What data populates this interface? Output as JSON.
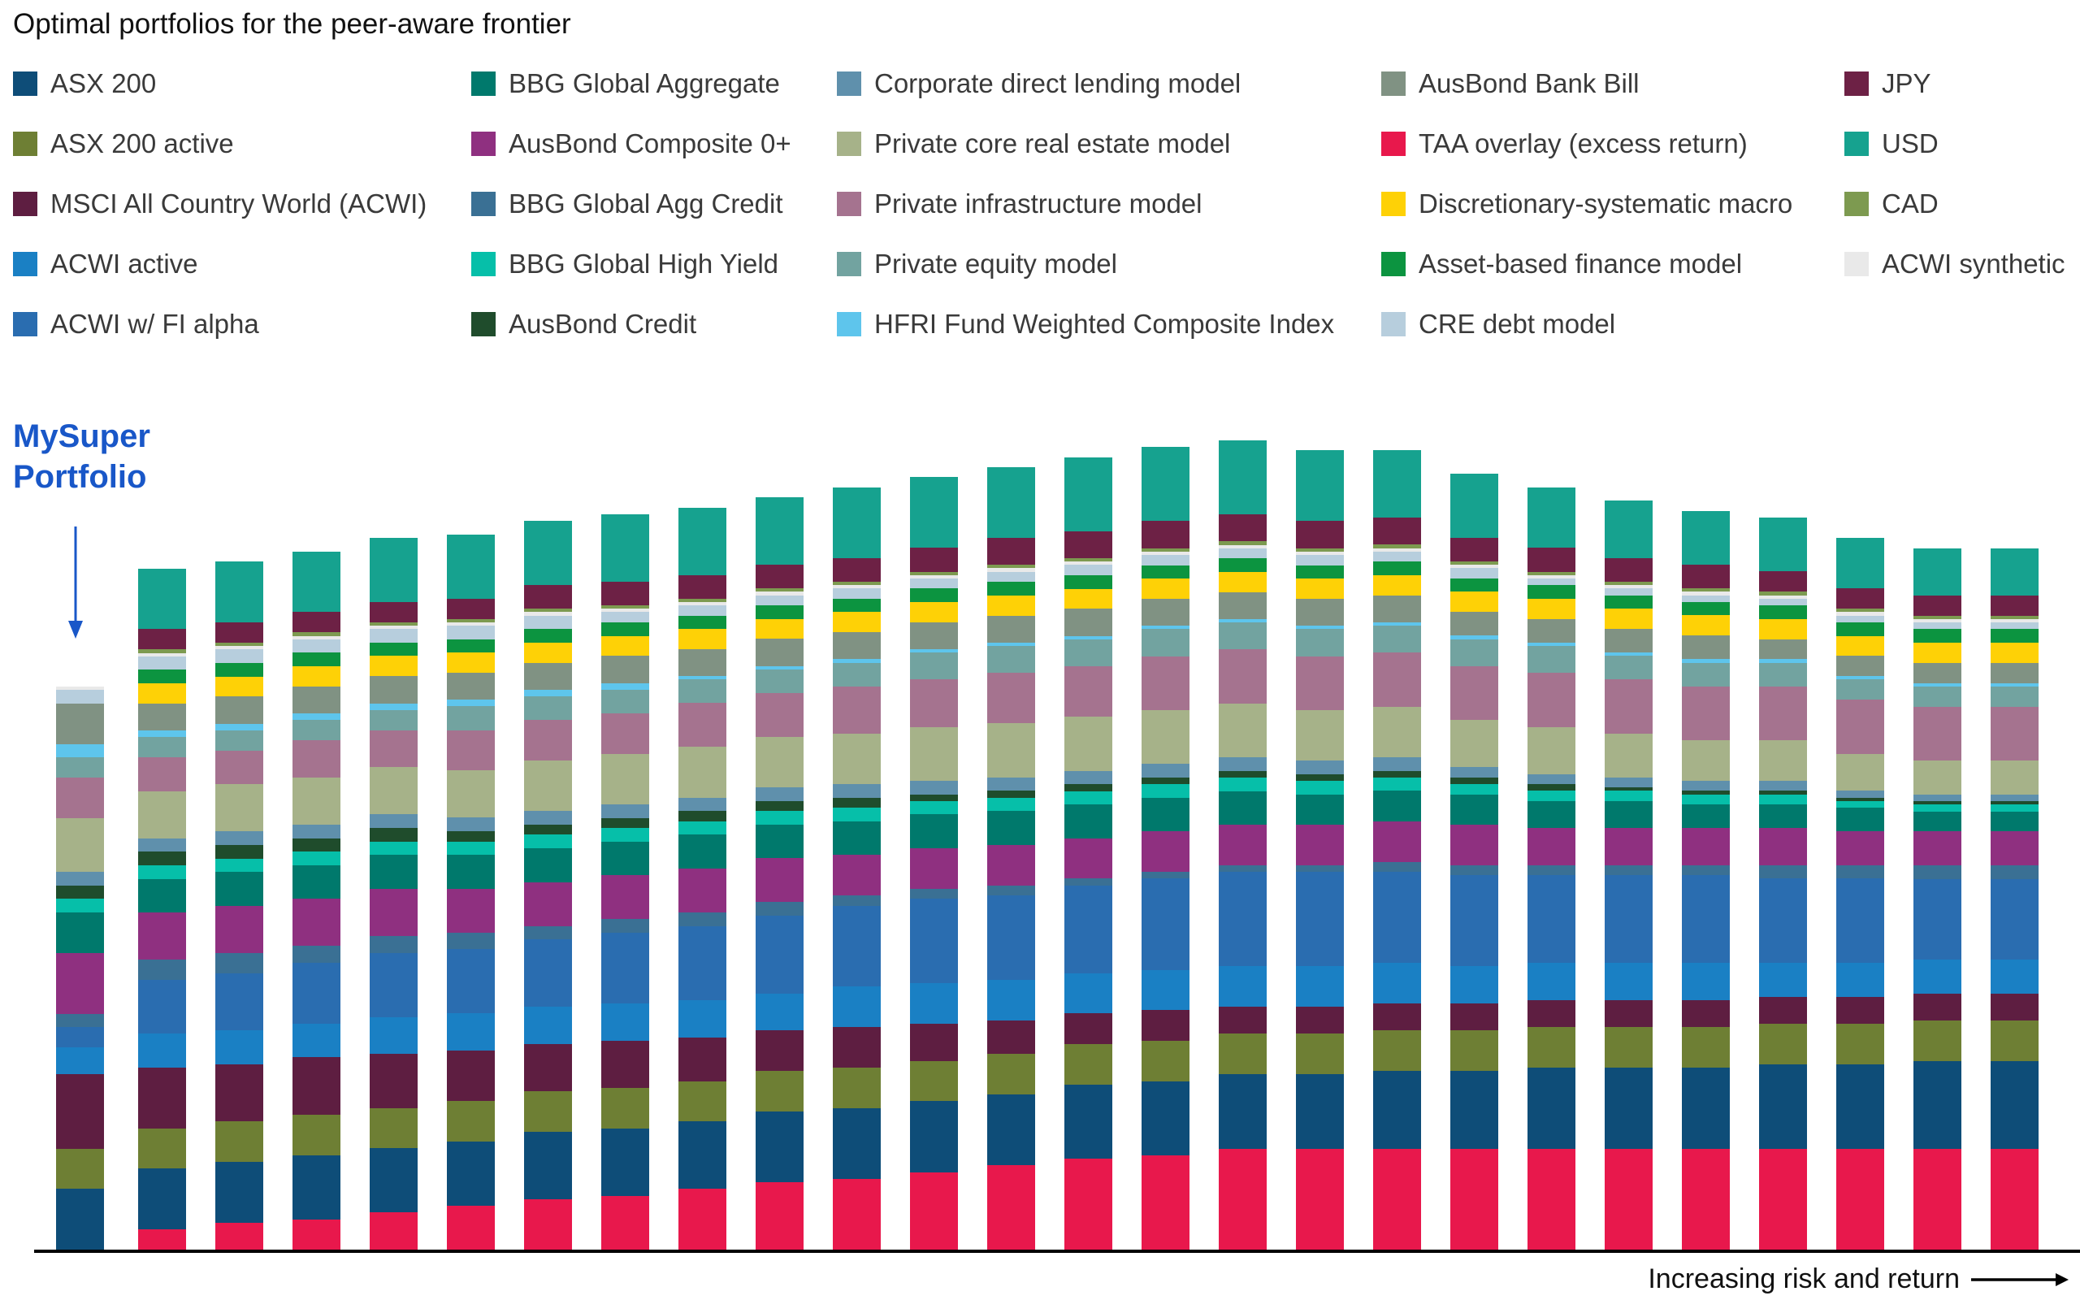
{
  "title": "Optimal portfolios for the peer-aware frontier",
  "annotation": {
    "line1": "MySuper",
    "line2": "Portfolio",
    "color": "#1957c8"
  },
  "xaxis": {
    "label": "Increasing risk and return"
  },
  "legend": {
    "columns": [
      [
        "ASX 200",
        "ASX 200 active",
        "MSCI All Country World (ACWI)",
        "ACWI active",
        "ACWI w/ FI alpha"
      ],
      [
        "BBG Global Aggregate",
        "AusBond Composite 0+",
        "BBG Global Agg Credit",
        "BBG Global High Yield",
        "AusBond Credit"
      ],
      [
        "Corporate direct lending model",
        "Private core real estate model",
        "Private infrastructure model",
        "Private equity model",
        "HFRI Fund Weighted Composite Index"
      ],
      [
        "AusBond Bank Bill",
        "TAA overlay (excess return)",
        "Discretionary-systematic macro",
        "Asset-based finance model",
        "CRE debt model"
      ],
      [
        "JPY",
        "USD",
        "CAD",
        "ACWI synthetic"
      ]
    ]
  },
  "chart_data": {
    "type": "bar",
    "stacked": true,
    "bar_count": 26,
    "first_bar_label": "MySuper Portfolio",
    "x_meaning": "Portfolios ordered by increasing risk and return along the peer-aware efficient frontier",
    "y_meaning": "Portfolio weight (%), stacked allocation incl. overlays",
    "legend_position": "top",
    "grid": false,
    "series": [
      {
        "name": "TAA overlay (excess return)",
        "color": "#e8184c",
        "pattern": "dots",
        "values": [
          0,
          3,
          4,
          4.5,
          5.5,
          6.5,
          7.5,
          8,
          9,
          10,
          10.5,
          11.5,
          12.5,
          13.5,
          14,
          15,
          15,
          15,
          15,
          15,
          15,
          15,
          15,
          15,
          15,
          15
        ]
      },
      {
        "name": "ASX 200",
        "color": "#0e4d78",
        "pattern": "none",
        "values": [
          9,
          9,
          9,
          9.5,
          9.5,
          9.5,
          10,
          10,
          10,
          10.5,
          10.5,
          10.5,
          10.5,
          11,
          11,
          11,
          11,
          11.5,
          11.5,
          12,
          12,
          12,
          12.5,
          12.5,
          13,
          13
        ]
      },
      {
        "name": "ASX 200 active",
        "color": "#6e7f34",
        "pattern": "none",
        "values": [
          6,
          6,
          6,
          6,
          6,
          6,
          6,
          6,
          6,
          6,
          6,
          6,
          6,
          6,
          6,
          6,
          6,
          6,
          6,
          6,
          6,
          6,
          6,
          6,
          6,
          6
        ]
      },
      {
        "name": "MSCI All Country World (ACWI)",
        "color": "#5e1e41",
        "pattern": "none",
        "values": [
          11,
          9,
          8.5,
          8.5,
          8,
          7.5,
          7,
          7,
          6.5,
          6,
          6,
          5.5,
          5,
          4.5,
          4.5,
          4,
          4,
          4,
          4,
          4,
          4,
          4,
          4,
          4,
          4,
          4
        ]
      },
      {
        "name": "ACWI active",
        "color": "#1a80c4",
        "pattern": "none",
        "values": [
          4,
          5,
          5,
          5,
          5.5,
          5.5,
          5.5,
          5.5,
          5.5,
          5.5,
          6,
          6,
          6,
          6,
          6,
          6,
          6,
          6,
          5.5,
          5.5,
          5.5,
          5.5,
          5,
          5,
          5,
          5
        ]
      },
      {
        "name": "ACWI w/ FI alpha",
        "color": "#2a6db0",
        "pattern": "zigzag",
        "values": [
          3,
          8,
          8.5,
          9,
          9.5,
          9.5,
          10,
          10.5,
          11,
          11.5,
          12,
          12.5,
          12.5,
          13,
          13.5,
          14,
          14,
          13.5,
          13.5,
          13,
          13,
          13,
          12.5,
          12.5,
          12,
          12
        ]
      },
      {
        "name": "BBG Global Agg Credit",
        "color": "#3a7094",
        "pattern": "none",
        "values": [
          2,
          3,
          3,
          2.5,
          2.5,
          2.5,
          2,
          2,
          2,
          2,
          1.5,
          1.5,
          1.5,
          1,
          1,
          1,
          1,
          1.5,
          1.5,
          1.5,
          1.5,
          1.5,
          2,
          2,
          2,
          2
        ]
      },
      {
        "name": "AusBond Composite 0+",
        "color": "#8f3080",
        "pattern": "none",
        "values": [
          9,
          7,
          7,
          7,
          7,
          6.5,
          6.5,
          6.5,
          6.5,
          6.5,
          6,
          6,
          6,
          6,
          6,
          6,
          6,
          6,
          6,
          5.5,
          5.5,
          5.5,
          5.5,
          5,
          5,
          5
        ]
      },
      {
        "name": "BBG Global Aggregate",
        "color": "#00796c",
        "pattern": "none",
        "values": [
          6,
          5,
          5,
          5,
          5,
          5,
          5,
          5,
          5,
          5,
          5,
          5,
          5,
          5,
          5,
          5,
          4.5,
          4.5,
          4.5,
          4,
          4,
          3.5,
          3.5,
          3.5,
          3,
          3
        ]
      },
      {
        "name": "BBG Global High Yield",
        "color": "#06bfa9",
        "pattern": "none",
        "values": [
          2,
          2,
          2,
          2,
          2,
          2,
          2,
          2,
          2,
          2,
          2,
          2,
          2,
          2,
          2,
          2,
          2,
          2,
          1.5,
          1.5,
          1.5,
          1.5,
          1.5,
          1,
          1,
          1
        ]
      },
      {
        "name": "AusBond Credit",
        "color": "#1f4c2c",
        "pattern": "none",
        "values": [
          2,
          2,
          2,
          2,
          2,
          1.5,
          1.5,
          1.5,
          1.5,
          1.5,
          1.5,
          1,
          1,
          1,
          1,
          1,
          1,
          1,
          1,
          1,
          0.5,
          0.5,
          0.5,
          0.5,
          0.5,
          0.5
        ]
      },
      {
        "name": "Corporate direct lending model",
        "color": "#5f90ac",
        "pattern": "none",
        "values": [
          2,
          2,
          2,
          2,
          2,
          2,
          2,
          2,
          2,
          2,
          2,
          2,
          2,
          2,
          2,
          2,
          2,
          2,
          1.5,
          1.5,
          1.5,
          1.5,
          1.5,
          1,
          1,
          1
        ]
      },
      {
        "name": "Private core real estate model",
        "color": "#a6b289",
        "pattern": "none",
        "values": [
          8,
          7,
          7,
          7,
          7,
          7,
          7.5,
          7.5,
          7.5,
          7.5,
          7.5,
          8,
          8,
          8,
          8,
          8,
          7.5,
          7.5,
          7,
          7,
          6.5,
          6,
          6,
          5.5,
          5,
          5
        ]
      },
      {
        "name": "Private infrastructure model",
        "color": "#a5738f",
        "pattern": "none",
        "values": [
          6,
          5,
          5,
          5.5,
          5.5,
          6,
          6,
          6,
          6.5,
          6.5,
          7,
          7,
          7.5,
          7.5,
          8,
          8,
          8,
          8,
          8,
          8,
          8,
          8,
          8,
          8,
          8,
          8
        ]
      },
      {
        "name": "Private equity model",
        "color": "#72a3a0",
        "pattern": "none",
        "values": [
          3,
          3,
          3,
          3,
          3,
          3.5,
          3.5,
          3.5,
          3.5,
          3.5,
          3.5,
          4,
          4,
          4,
          4,
          4,
          4,
          4,
          4,
          4,
          3.5,
          3.5,
          3.5,
          3,
          3,
          3
        ]
      },
      {
        "name": "HFRI Fund Weighted Composite Index",
        "color": "#5ec5ec",
        "pattern": "none",
        "values": [
          2,
          1,
          1,
          1,
          1,
          1,
          1,
          1,
          0.5,
          0.5,
          0.5,
          0.5,
          0.5,
          0.5,
          0.5,
          0.5,
          0.5,
          0.5,
          0.5,
          0.5,
          0.5,
          0.5,
          0.5,
          0.5,
          0.5,
          0.5
        ]
      },
      {
        "name": "AusBond Bank Bill",
        "color": "#809283",
        "pattern": "none",
        "values": [
          6,
          4,
          4,
          4,
          4,
          4,
          4,
          4,
          4,
          4,
          4,
          4,
          4,
          4,
          4,
          4,
          4,
          4,
          3.5,
          3.5,
          3.5,
          3.5,
          3,
          3,
          3,
          3
        ]
      },
      {
        "name": "Discretionary-systematic macro",
        "color": "#fed106",
        "pattern": "none",
        "values": [
          0,
          3,
          3,
          3,
          3,
          3,
          3,
          3,
          3,
          3,
          3,
          3,
          3,
          3,
          3,
          3,
          3,
          3,
          3,
          3,
          3,
          3,
          3,
          3,
          3,
          3
        ]
      },
      {
        "name": "Asset-based finance model",
        "color": "#0c9440",
        "pattern": "none",
        "values": [
          0,
          2,
          2,
          2,
          2,
          2,
          2,
          2,
          2,
          2,
          2,
          2,
          2,
          2,
          2,
          2,
          2,
          2,
          2,
          2,
          2,
          2,
          2,
          2,
          2,
          2
        ]
      },
      {
        "name": "CRE debt model",
        "color": "#b7cedd",
        "pattern": "none",
        "values": [
          2,
          2,
          2,
          2,
          2,
          2,
          2,
          1.5,
          1.5,
          1.5,
          1.5,
          1.5,
          1.5,
          1.5,
          1.5,
          1.5,
          1.5,
          1.5,
          1.5,
          1,
          1,
          1,
          1,
          1,
          1,
          1
        ]
      },
      {
        "name": "ACWI synthetic",
        "color": "#e9e9e9",
        "pattern": "fine-dots",
        "values": [
          0.5,
          0.5,
          0.5,
          0.5,
          0.5,
          0.5,
          0.5,
          0.5,
          0.5,
          0.5,
          0.5,
          0.5,
          0.5,
          0.5,
          0.5,
          0.5,
          0.5,
          0.5,
          0.5,
          0.5,
          0.5,
          0.5,
          0.5,
          0.5,
          0.5,
          0.5
        ]
      },
      {
        "name": "CAD",
        "color": "#7d9a50",
        "pattern": "none",
        "values": [
          0,
          0.5,
          0.5,
          0.5,
          0.5,
          0.5,
          0.5,
          0.5,
          0.5,
          0.5,
          0.5,
          0.5,
          0.5,
          0.5,
          0.5,
          0.5,
          0.5,
          0.5,
          0.5,
          0.5,
          0.5,
          0.5,
          0.5,
          0.5,
          0.5,
          0.5
        ]
      },
      {
        "name": "JPY",
        "color": "#6d2145",
        "pattern": "dots",
        "values": [
          0,
          3,
          3,
          3,
          3,
          3,
          3.5,
          3.5,
          3.5,
          3.5,
          3.5,
          3.5,
          4,
          4,
          4,
          4,
          4,
          4,
          3.5,
          3.5,
          3.5,
          3.5,
          3,
          3,
          3,
          3
        ]
      },
      {
        "name": "USD",
        "color": "#16a28f",
        "pattern": "dots",
        "values": [
          0,
          9,
          9,
          9,
          9.5,
          9.5,
          9.5,
          10,
          10,
          10,
          10.5,
          10.5,
          10.5,
          11,
          11,
          11,
          10.5,
          10,
          9.5,
          9,
          8.5,
          8,
          8,
          7.5,
          7,
          7
        ]
      }
    ]
  }
}
